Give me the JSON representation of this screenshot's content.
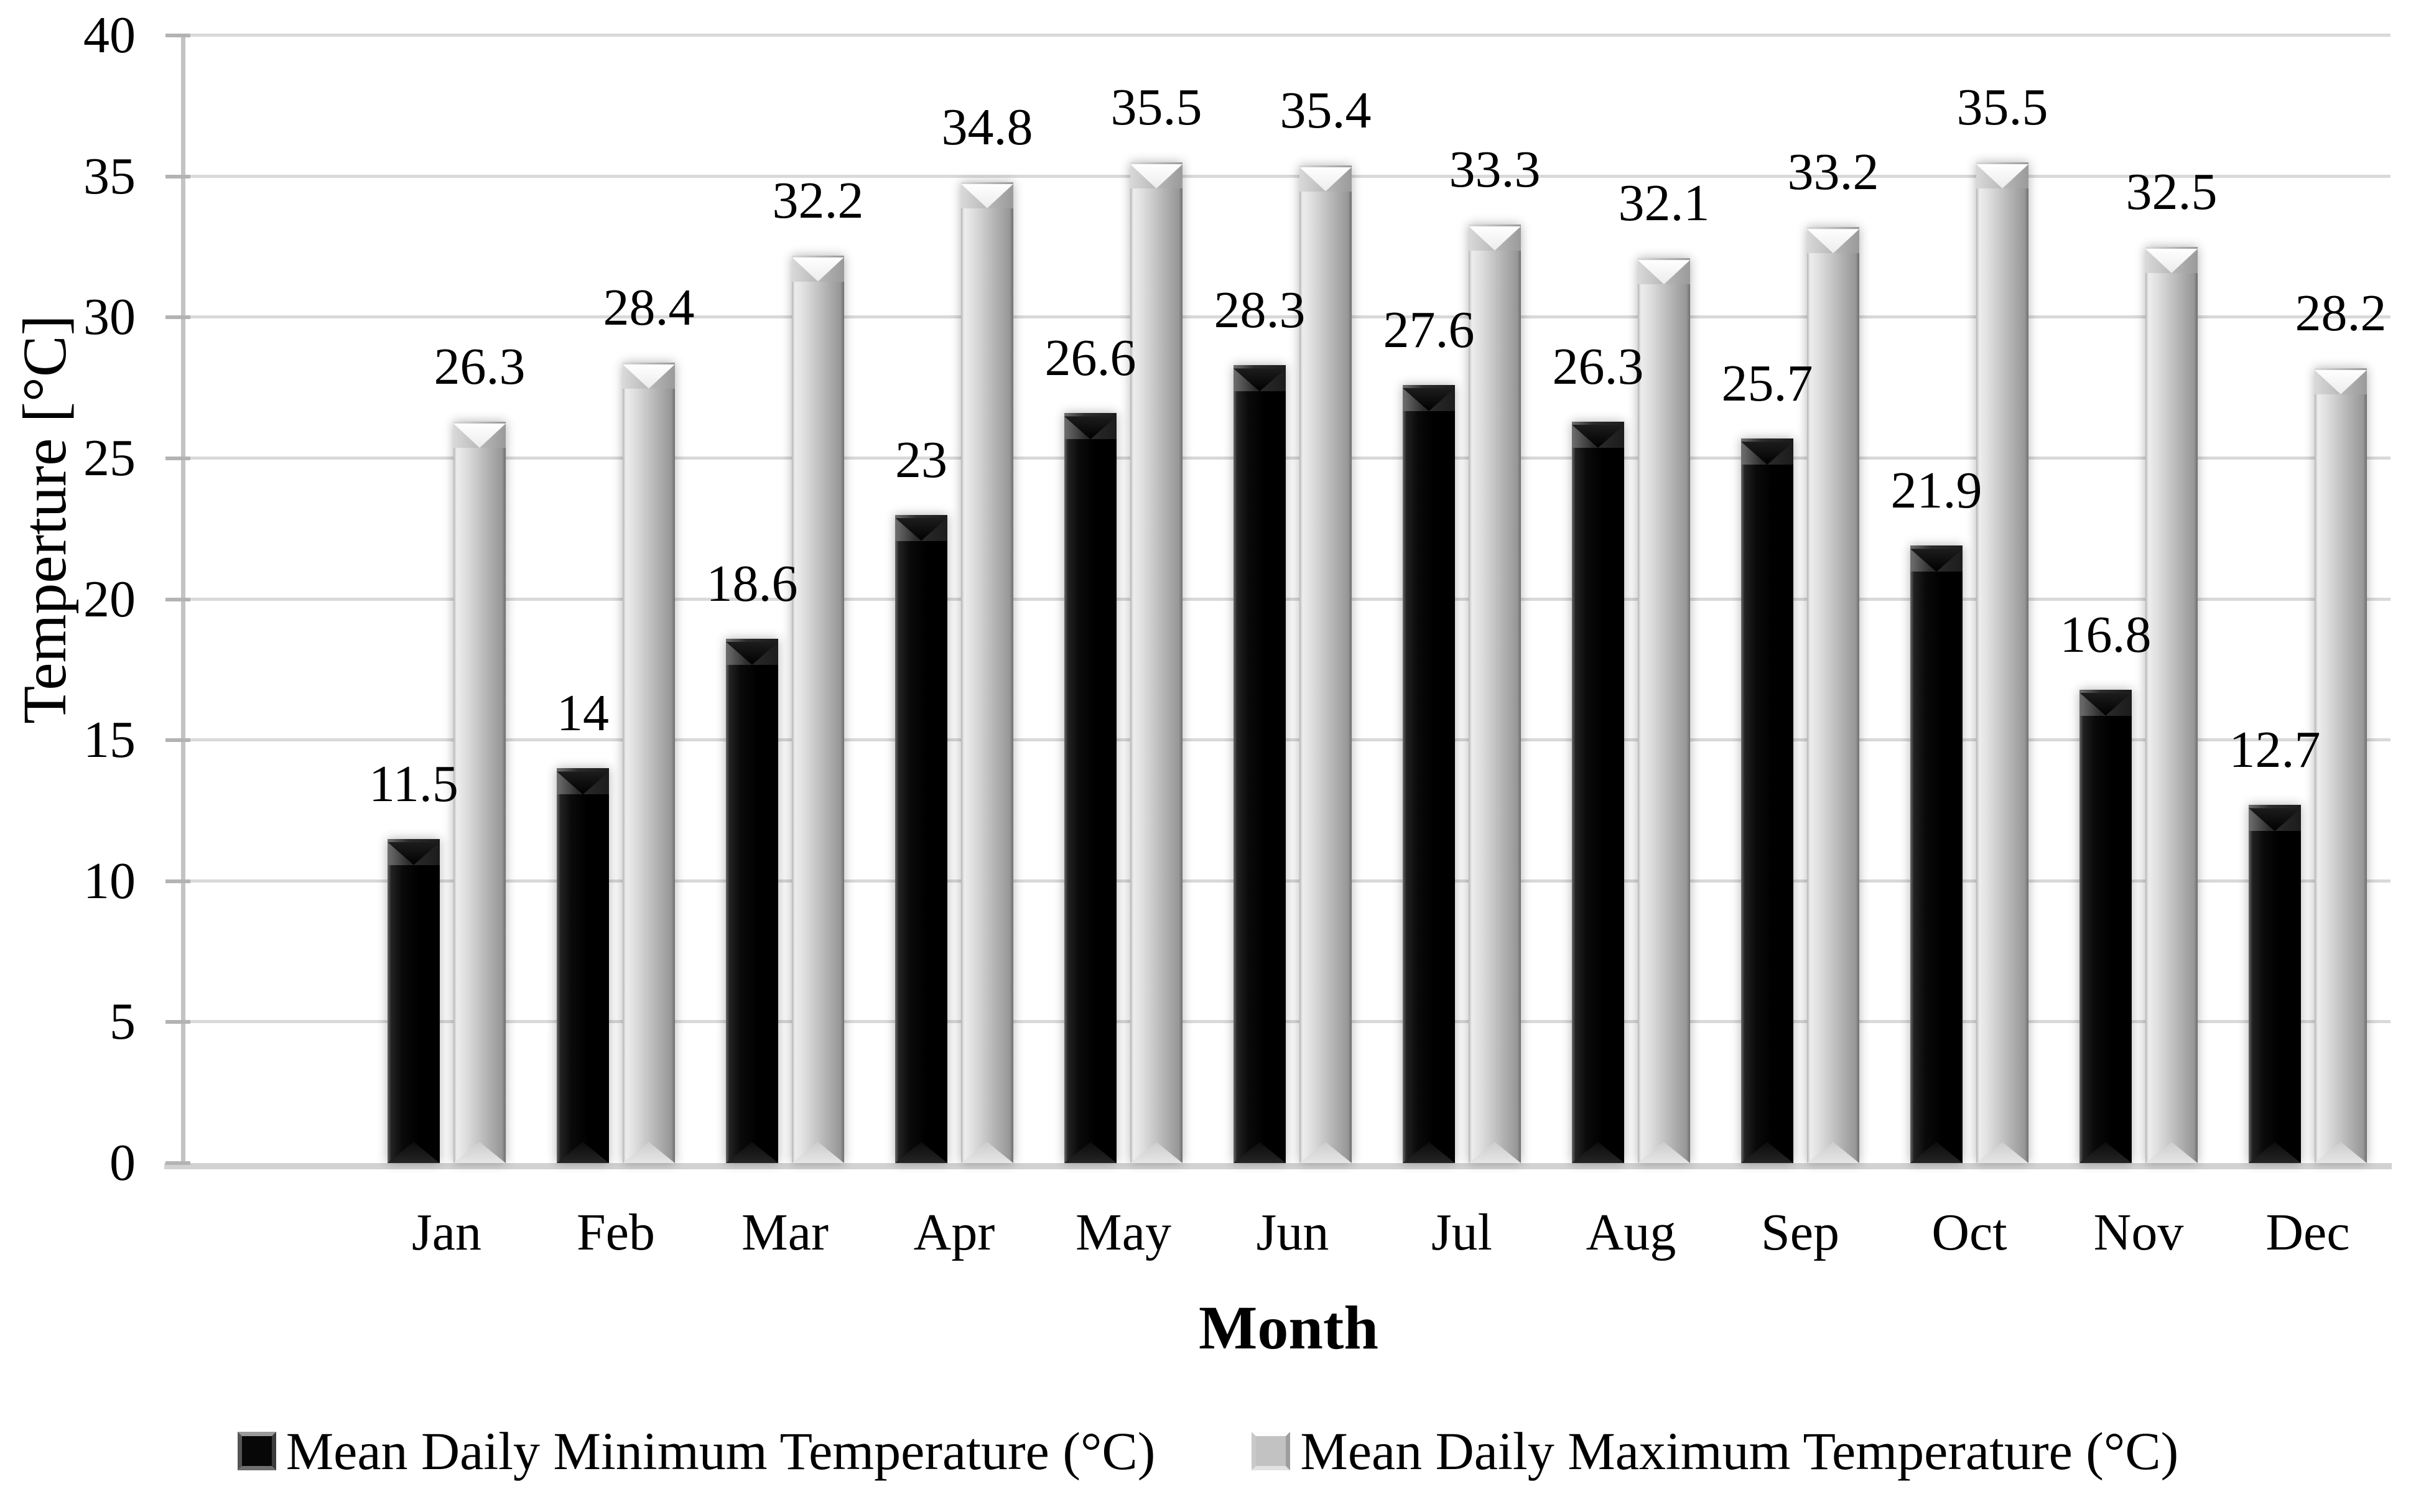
{
  "chart_data": {
    "type": "bar",
    "title": "",
    "categories": [
      "Jan",
      "Feb",
      "Mar",
      "Apr",
      "May",
      "Jun",
      "Jul",
      "Aug",
      "Sep",
      "Oct",
      "Nov",
      "Dec"
    ],
    "series": [
      {
        "name": "Mean Daily Minimum Temperature (°C)",
        "color": "#0a0a0a",
        "values": [
          11.5,
          14,
          18.6,
          23,
          26.6,
          28.3,
          27.6,
          26.3,
          25.7,
          21.9,
          16.8,
          12.7
        ]
      },
      {
        "name": "Mean Daily Maximum Temperature (°C)",
        "color": "#bfbfbf",
        "values": [
          26.3,
          28.4,
          32.2,
          34.8,
          35.5,
          35.4,
          33.3,
          32.1,
          33.2,
          35.5,
          32.5,
          28.2
        ]
      }
    ],
    "xlabel": "Month",
    "ylabel": "Temperture [°C]",
    "ylim": [
      0,
      40
    ],
    "yticks": [
      0,
      5,
      10,
      15,
      20,
      25,
      30,
      35,
      40
    ],
    "grid": true,
    "data_labels": true,
    "legend_position": "bottom",
    "colors": {
      "gridline": "#d9d9d9",
      "axis_line": "#c3c3c3",
      "label_text": "#000000",
      "background": "#ffffff"
    }
  }
}
